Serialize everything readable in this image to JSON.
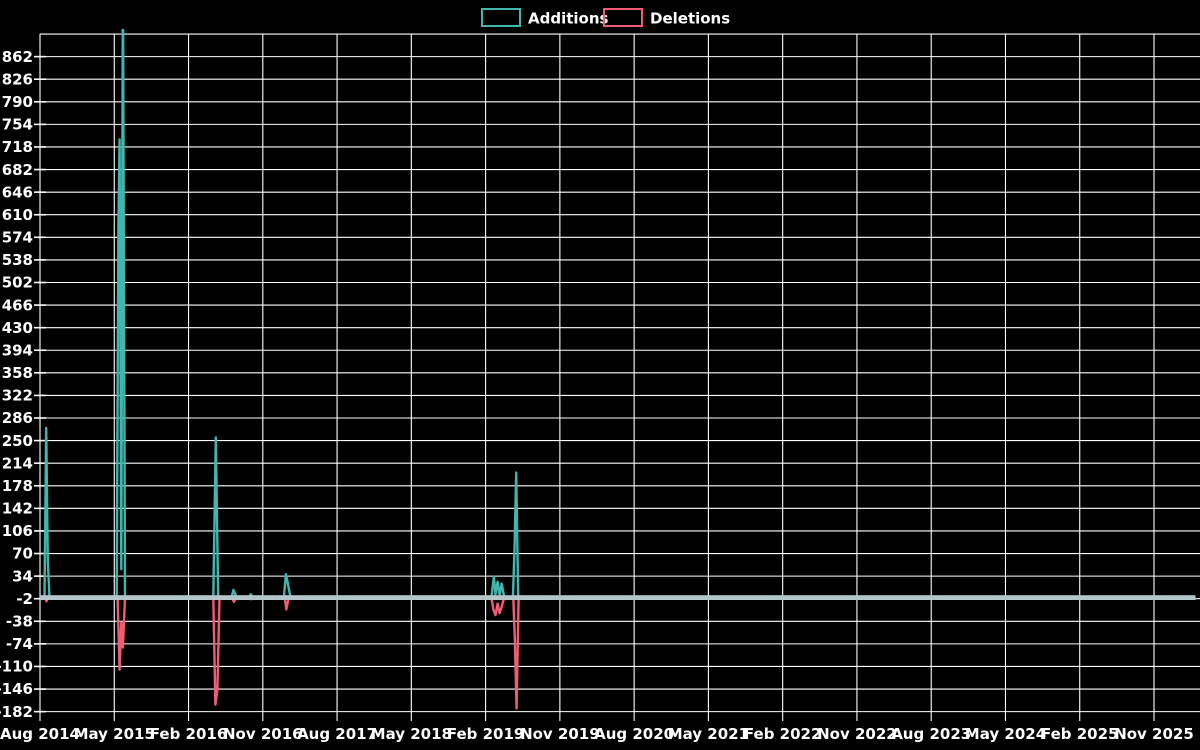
{
  "colors": {
    "background": "#000000",
    "grid": "#ffffff",
    "text": "#ffffff",
    "additions": "#40b6ae",
    "deletions": "#f05c74",
    "baseline_band": "#b5c6ca"
  },
  "chart_data": {
    "type": "line",
    "title": "",
    "xlabel": "",
    "ylabel": "",
    "grid": true,
    "legend_position": "top-center",
    "x_axis_note": "x values are months since Aug 2014; tick marks every 9 months; weekly additions/deletions, flat at 0 except spikes; tallest May-2015 addition spike is clipped at top of plot",
    "xticks": [
      "Aug 2014",
      "May 2015",
      "Feb 2016",
      "Nov 2016",
      "Aug 2017",
      "May 2018",
      "Feb 2019",
      "Nov 2019",
      "Aug 2020",
      "May 2021",
      "Feb 2022",
      "Nov 2022",
      "Aug 2023",
      "May 2024",
      "Feb 2025",
      "Nov 2025"
    ],
    "yticks": [
      862,
      826,
      790,
      754,
      718,
      682,
      646,
      610,
      574,
      538,
      502,
      466,
      430,
      394,
      358,
      322,
      286,
      250,
      214,
      178,
      142,
      106,
      70,
      34,
      -2,
      -38,
      -74,
      -110,
      -146,
      -182
    ],
    "ylim": [
      -185,
      905
    ],
    "xlim_months": [
      0,
      140
    ],
    "series": [
      {
        "name": "Additions",
        "color": "#40b6ae",
        "points": [
          [
            0,
            0
          ],
          [
            0.55,
            0
          ],
          [
            0.75,
            270
          ],
          [
            0.95,
            59
          ],
          [
            1.15,
            0
          ],
          [
            9.3,
            0
          ],
          [
            9.5,
            590
          ],
          [
            9.65,
            730
          ],
          [
            9.85,
            45
          ],
          [
            10.05,
            1005
          ],
          [
            10.3,
            0
          ],
          [
            21.0,
            0
          ],
          [
            21.3,
            255
          ],
          [
            21.6,
            0
          ],
          [
            23.2,
            0
          ],
          [
            23.45,
            12
          ],
          [
            23.65,
            5
          ],
          [
            23.9,
            0
          ],
          [
            25.3,
            0
          ],
          [
            25.55,
            5
          ],
          [
            25.8,
            0
          ],
          [
            29.55,
            0
          ],
          [
            29.8,
            37
          ],
          [
            30.0,
            24
          ],
          [
            30.35,
            0
          ],
          [
            54.7,
            0
          ],
          [
            55.0,
            33
          ],
          [
            55.2,
            5
          ],
          [
            55.45,
            25
          ],
          [
            55.7,
            4
          ],
          [
            55.95,
            22
          ],
          [
            56.25,
            0
          ],
          [
            57.3,
            0
          ],
          [
            57.5,
            75
          ],
          [
            57.7,
            199
          ],
          [
            57.95,
            0
          ],
          [
            140,
            0
          ]
        ]
      },
      {
        "name": "Deletions",
        "color": "#f05c74",
        "points": [
          [
            0,
            0
          ],
          [
            0.6,
            0
          ],
          [
            0.78,
            -6
          ],
          [
            1.0,
            0
          ],
          [
            9.4,
            0
          ],
          [
            9.65,
            -115
          ],
          [
            9.85,
            -40
          ],
          [
            10.05,
            -80
          ],
          [
            10.3,
            0
          ],
          [
            21.0,
            0
          ],
          [
            21.25,
            -171
          ],
          [
            21.5,
            -147
          ],
          [
            21.75,
            0
          ],
          [
            23.25,
            0
          ],
          [
            23.5,
            -7
          ],
          [
            23.75,
            0
          ],
          [
            25.35,
            0
          ],
          [
            25.55,
            -3
          ],
          [
            25.75,
            0
          ],
          [
            29.65,
            0
          ],
          [
            29.85,
            -19
          ],
          [
            30.15,
            0
          ],
          [
            54.7,
            0
          ],
          [
            54.95,
            -20
          ],
          [
            55.2,
            -28
          ],
          [
            55.45,
            -10
          ],
          [
            55.7,
            -25
          ],
          [
            55.95,
            -15
          ],
          [
            56.25,
            0
          ],
          [
            57.35,
            0
          ],
          [
            57.55,
            -70
          ],
          [
            57.75,
            -177
          ],
          [
            58.0,
            0
          ],
          [
            140,
            0
          ]
        ]
      }
    ]
  }
}
